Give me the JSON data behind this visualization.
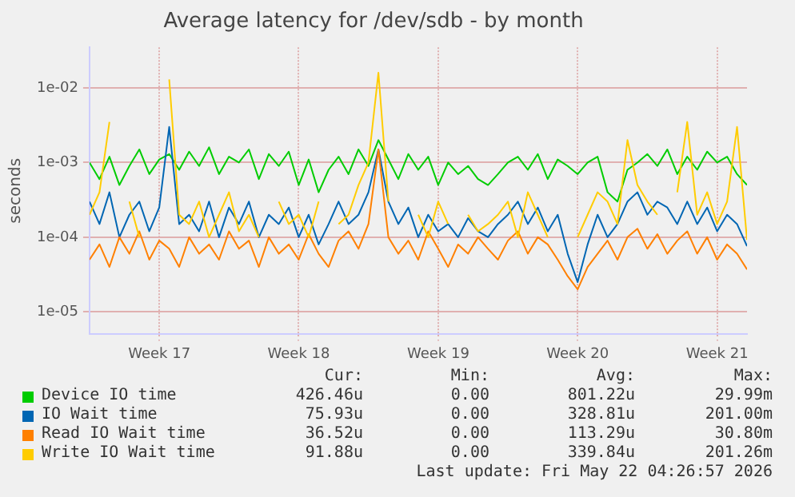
{
  "chart_data": {
    "type": "line",
    "title": "Average latency for /dev/sdb - by month",
    "ylabel": "seconds",
    "log": "y",
    "grid": true,
    "legend": "bottom",
    "xlim": [
      "2026-04-20T00:00",
      "2026-05-23T00:00"
    ],
    "xticks": [
      {
        "value": "2026-04-23T12:00",
        "label": "Week 17"
      },
      {
        "value": "2026-04-30T12:00",
        "label": "Week 18"
      },
      {
        "value": "2026-05-07T12:00",
        "label": "Week 19"
      },
      {
        "value": "2026-05-14T12:00",
        "label": "Week 20"
      },
      {
        "value": "2026-05-21T12:00",
        "label": "Week 21"
      }
    ],
    "ylim": [
      5e-06,
      0.035
    ],
    "yticks": [
      {
        "value": 1e-05,
        "label": "1e-05"
      },
      {
        "value": 0.0001,
        "label": "1e-04"
      },
      {
        "value": 0.001,
        "label": "1e-03"
      },
      {
        "value": 0.01,
        "label": "1e-02"
      }
    ],
    "x": [
      "2026-04-20T00:00",
      "2026-04-20T12:00",
      "2026-04-21T00:00",
      "2026-04-21T12:00",
      "2026-04-22T00:00",
      "2026-04-22T12:00",
      "2026-04-23T00:00",
      "2026-04-23T12:00",
      "2026-04-24T00:00",
      "2026-04-24T12:00",
      "2026-04-25T00:00",
      "2026-04-25T12:00",
      "2026-04-26T00:00",
      "2026-04-26T12:00",
      "2026-04-27T00:00",
      "2026-04-27T12:00",
      "2026-04-28T00:00",
      "2026-04-28T12:00",
      "2026-04-29T00:00",
      "2026-04-29T12:00",
      "2026-04-30T00:00",
      "2026-04-30T12:00",
      "2026-05-01T00:00",
      "2026-05-01T12:00",
      "2026-05-02T00:00",
      "2026-05-02T12:00",
      "2026-05-03T00:00",
      "2026-05-03T12:00",
      "2026-05-04T00:00",
      "2026-05-04T12:00",
      "2026-05-05T00:00",
      "2026-05-05T12:00",
      "2026-05-06T00:00",
      "2026-05-06T12:00",
      "2026-05-07T00:00",
      "2026-05-07T12:00",
      "2026-05-08T00:00",
      "2026-05-08T12:00",
      "2026-05-09T00:00",
      "2026-05-09T12:00",
      "2026-05-10T00:00",
      "2026-05-10T12:00",
      "2026-05-11T00:00",
      "2026-05-11T12:00",
      "2026-05-12T00:00",
      "2026-05-12T12:00",
      "2026-05-13T00:00",
      "2026-05-13T12:00",
      "2026-05-14T00:00",
      "2026-05-14T12:00",
      "2026-05-15T00:00",
      "2026-05-15T12:00",
      "2026-05-16T00:00",
      "2026-05-16T12:00",
      "2026-05-17T00:00",
      "2026-05-17T12:00",
      "2026-05-18T00:00",
      "2026-05-18T12:00",
      "2026-05-19T00:00",
      "2026-05-19T12:00",
      "2026-05-20T00:00",
      "2026-05-20T12:00",
      "2026-05-21T00:00",
      "2026-05-21T12:00",
      "2026-05-22T00:00",
      "2026-05-22T12:00",
      "2026-05-23T00:00"
    ],
    "series": [
      {
        "name": "Device IO time",
        "color": "#00cc00",
        "values": [
          0.001,
          0.0006,
          0.0012,
          0.0005,
          0.0009,
          0.0015,
          0.0007,
          0.0011,
          0.0013,
          0.0008,
          0.0014,
          0.0009,
          0.0016,
          0.0007,
          0.0012,
          0.001,
          0.0015,
          0.0006,
          0.0013,
          0.0009,
          0.0014,
          0.0005,
          0.0011,
          0.0004,
          0.0008,
          0.0012,
          0.0007,
          0.0015,
          0.0009,
          0.002,
          0.0011,
          0.0006,
          0.0013,
          0.0008,
          0.0012,
          0.0005,
          0.001,
          0.0007,
          0.0009,
          0.0006,
          0.0005,
          0.0007,
          0.001,
          0.0012,
          0.0008,
          0.0013,
          0.0006,
          0.0011,
          0.0009,
          0.0007,
          0.001,
          0.0012,
          0.0004,
          0.0003,
          0.0008,
          0.001,
          0.0013,
          0.0009,
          0.0015,
          0.0007,
          0.0012,
          0.0008,
          0.0014,
          0.001,
          0.0012,
          0.0007,
          0.0005
        ]
      },
      {
        "name": "IO Wait time",
        "color": "#0066b3",
        "values": [
          0.0003,
          0.00015,
          0.0004,
          0.0001,
          0.0002,
          0.0003,
          0.00012,
          0.00025,
          0.003,
          0.00015,
          0.0002,
          0.00012,
          0.0003,
          0.0001,
          0.00025,
          0.00015,
          0.0003,
          0.0001,
          0.0002,
          0.00015,
          0.00025,
          0.0001,
          0.0002,
          8e-05,
          0.00015,
          0.0003,
          0.00015,
          0.0002,
          0.0004,
          0.0015,
          0.0003,
          0.00015,
          0.00025,
          0.0001,
          0.0002,
          0.00012,
          0.00015,
          0.0001,
          0.00018,
          0.00012,
          0.0001,
          0.00015,
          0.0002,
          0.0003,
          0.00015,
          0.00025,
          0.00012,
          0.0002,
          6e-05,
          2.5e-05,
          8e-05,
          0.0002,
          0.0001,
          0.00015,
          0.0003,
          0.0004,
          0.0002,
          0.0003,
          0.00025,
          0.00015,
          0.0003,
          0.00015,
          0.00025,
          0.00012,
          0.0002,
          0.00015,
          7.6e-05
        ]
      },
      {
        "name": "Read IO Wait time",
        "color": "#ff8000",
        "values": [
          5e-05,
          8e-05,
          4e-05,
          0.0001,
          6e-05,
          0.00012,
          5e-05,
          9e-05,
          7e-05,
          4e-05,
          0.0001,
          6e-05,
          8e-05,
          5e-05,
          0.00012,
          7e-05,
          9e-05,
          4e-05,
          0.0001,
          6e-05,
          8e-05,
          5e-05,
          0.00011,
          6e-05,
          4e-05,
          9e-05,
          0.00012,
          7e-05,
          0.00015,
          0.0015,
          0.0001,
          6e-05,
          9e-05,
          5e-05,
          0.00012,
          7e-05,
          4e-05,
          8e-05,
          6e-05,
          0.0001,
          7e-05,
          5e-05,
          9e-05,
          0.00012,
          6e-05,
          0.0001,
          8e-05,
          5e-05,
          3e-05,
          2e-05,
          4e-05,
          6e-05,
          9e-05,
          5e-05,
          0.0001,
          0.00013,
          7e-05,
          0.00011,
          6e-05,
          9e-05,
          0.00012,
          6e-05,
          0.0001,
          5e-05,
          8e-05,
          6e-05,
          3.7e-05
        ]
      },
      {
        "name": "Write IO Wait time",
        "color": "#ffcc00",
        "values": [
          0.0002,
          0.0004,
          0.0035,
          null,
          0.0003,
          0.0001,
          null,
          null,
          0.013,
          0.0002,
          0.00015,
          0.0003,
          0.0001,
          0.0002,
          0.0004,
          0.00012,
          0.0002,
          0.0001,
          null,
          0.0003,
          0.00015,
          0.0002,
          0.0001,
          0.0003,
          null,
          0.00015,
          0.0002,
          0.0005,
          0.001,
          0.016,
          0.0003,
          null,
          null,
          0.0002,
          0.0001,
          0.0003,
          0.00015,
          null,
          0.0002,
          0.00012,
          0.00015,
          0.0002,
          0.0003,
          0.0001,
          0.0004,
          0.0002,
          0.0001,
          null,
          null,
          0.0001,
          0.0002,
          0.0004,
          0.0003,
          0.00015,
          0.002,
          0.0005,
          0.0003,
          0.0002,
          null,
          0.0004,
          0.0035,
          0.0002,
          0.0004,
          0.00015,
          0.0003,
          0.003,
          9.2e-05
        ]
      }
    ],
    "annotations": [
      "Cur:",
      "Min:",
      "Avg:",
      "Max:",
      "426.46u",
      "0.00",
      "801.22u",
      "29.99m",
      "75.93u",
      "0.00",
      "328.81u",
      "201.00m",
      "36.52u",
      "0.00",
      "113.29u",
      "30.80m",
      "91.88u",
      "0.00",
      "339.84u",
      "201.26m",
      "Last update: Fri May 22 04:26:57 2026"
    ]
  }
}
